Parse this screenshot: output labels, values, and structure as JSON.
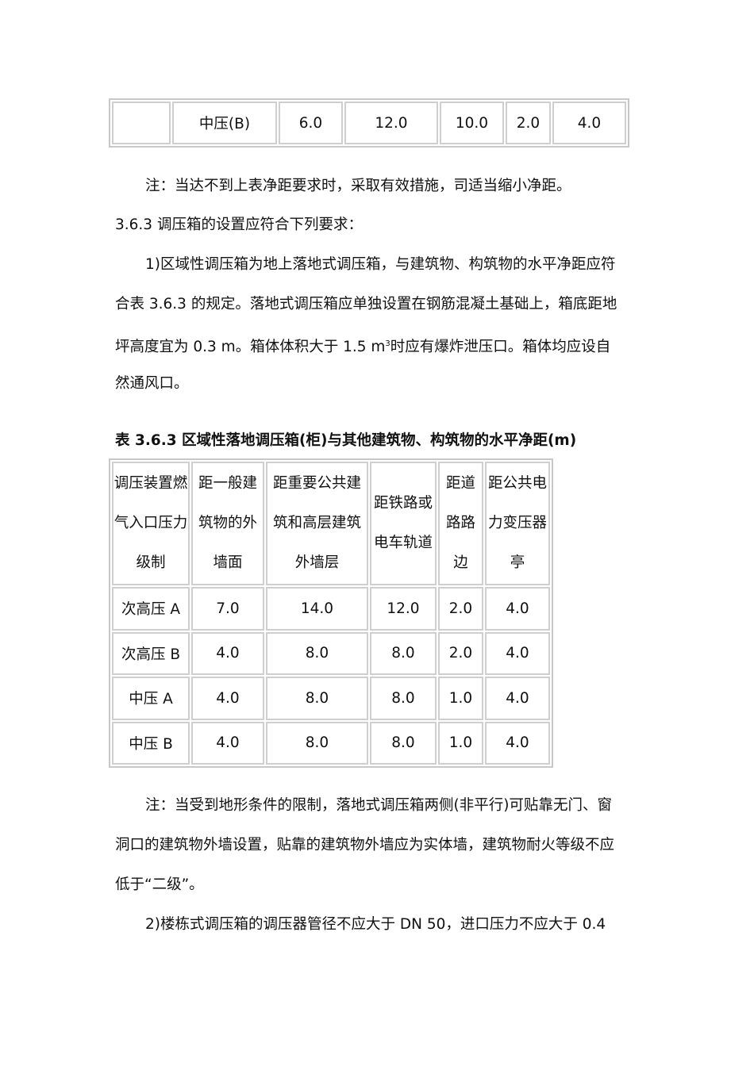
{
  "top_table": {
    "row": [
      "",
      "中压(B)",
      "6.0",
      "12.0",
      "10.0",
      "2.0",
      "4.0"
    ]
  },
  "note1": "注：当达不到上表净距要求时，采取有效措施，司适当缩小净距。",
  "section_heading": "3.6.3 调压箱的设置应符合下列要求：",
  "para1": {
    "lines": [
      "1)区域性调压箱为地上落地式调压箱，与建筑物、构筑物的水平净距应符",
      "合表 3.6.3 的规定。落地式调压箱应单独设置在钢筋混凝土基础上，箱底距地",
      "坪高度宜为 0.3 m。箱体体积大于 1.5 m",
      "时应有爆炸泄压口。箱体均应设自",
      "然通风口。"
    ],
    "superscript": "3"
  },
  "table2": {
    "title": "表 3.6.3 区域性落地调压箱(柜)与其他建筑物、构筑物的水平净距(m)",
    "headers": [
      [
        "调压装置燃",
        "气入口压力",
        "级制"
      ],
      [
        "距一般建",
        "筑物的外",
        "墙面"
      ],
      [
        "距重要公共建",
        "筑和高层建筑",
        "外墙层"
      ],
      [
        "距铁路或",
        "电车轨道"
      ],
      [
        "距道",
        "路路",
        "边"
      ],
      [
        "距公共电",
        "力变压器",
        "亭"
      ]
    ],
    "rows": [
      [
        "次高压 A",
        "7.0",
        "14.0",
        "12.0",
        "2.0",
        "4.0"
      ],
      [
        "次高压 B",
        "4.0",
        "8.0",
        "8.0",
        "2.0",
        "4.0"
      ],
      [
        "中压 A",
        "4.0",
        "8.0",
        "8.0",
        "1.0",
        "4.0"
      ],
      [
        "中压 B",
        "4.0",
        "8.0",
        "8.0",
        "1.0",
        "4.0"
      ]
    ]
  },
  "note2": {
    "lines": [
      "注：当受到地形条件的限制，落地式调压箱两侧(非平行)可贴靠无门、窗",
      "洞口的建筑物外墙设置，贴靠的建筑物外墙应为实体墙，建筑物耐火等级不应",
      "低于“二级”。"
    ]
  },
  "para2": "2)楼栋式调压箱的调压器管径不应大于 DN 50，进口压力不应大于 0.4"
}
